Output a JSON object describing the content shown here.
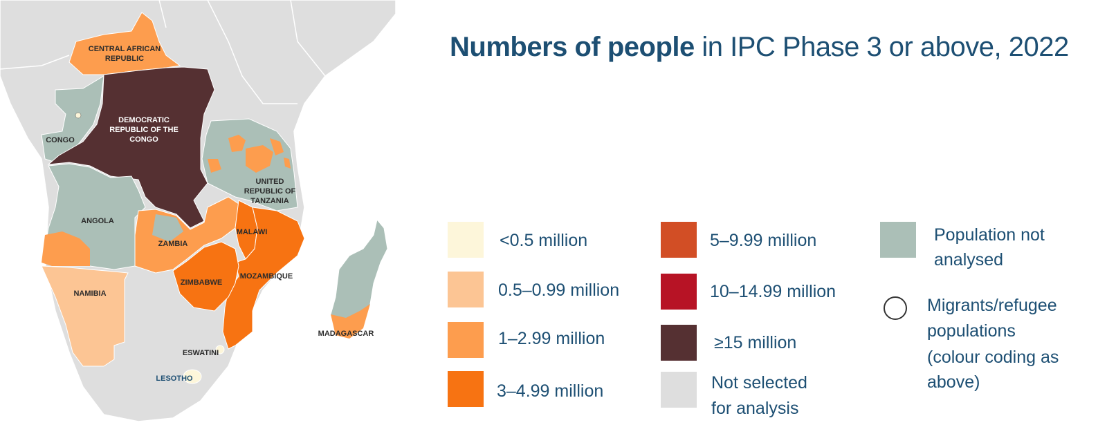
{
  "title": {
    "bold_part": "Numbers of people",
    "regular_part": " in IPC Phase 3 or above, 2022"
  },
  "legend": {
    "items": [
      {
        "label": "<0.5 million",
        "color": "#fdf6da"
      },
      {
        "label": "0.5–0.99 million",
        "color": "#fcc594"
      },
      {
        "label": "1–2.99 million",
        "color": "#fd9d4e"
      },
      {
        "label": "3–4.99 million",
        "color": "#f77312"
      },
      {
        "label": "5–9.99 million",
        "color": "#d24e25"
      },
      {
        "label": "10–14.99 million",
        "color": "#b71325"
      },
      {
        "label": "≥15 million",
        "color": "#553032"
      },
      {
        "label_line1": "Not selected",
        "label_line2": "for analysis",
        "color": "#dedede"
      },
      {
        "label_line1": "Population not",
        "label_line2": "analysed",
        "color": "#abbfb7"
      },
      {
        "label_line1": "Migrants/refugee",
        "label_line2": "populations",
        "label_line3": "(colour coding as",
        "label_line4": "above)",
        "icon": "circle-outline-icon"
      }
    ]
  },
  "map": {
    "labels": {
      "car_line1": "CENTRAL AFRICAN",
      "car_line2": "REPUBLIC",
      "drc_line1": "DEMOCRATIC",
      "drc_line2": "REPUBLIC OF THE",
      "drc_line3": "CONGO",
      "congo": "CONGO",
      "tz_line1": "UNITED",
      "tz_line2": "REPUBLIC OF",
      "tz_line3": "TANZANIA",
      "angola": "ANGOLA",
      "malawi": "MALAWI",
      "zambia": "ZAMBIA",
      "zimbabwe": "ZIMBABWE",
      "mozambique": "MOZAMBIQUE",
      "namibia": "NAMIBIA",
      "eswatini": "ESWATINI",
      "lesotho": "LESOTHO",
      "madagascar": "MADAGASCAR"
    }
  }
}
